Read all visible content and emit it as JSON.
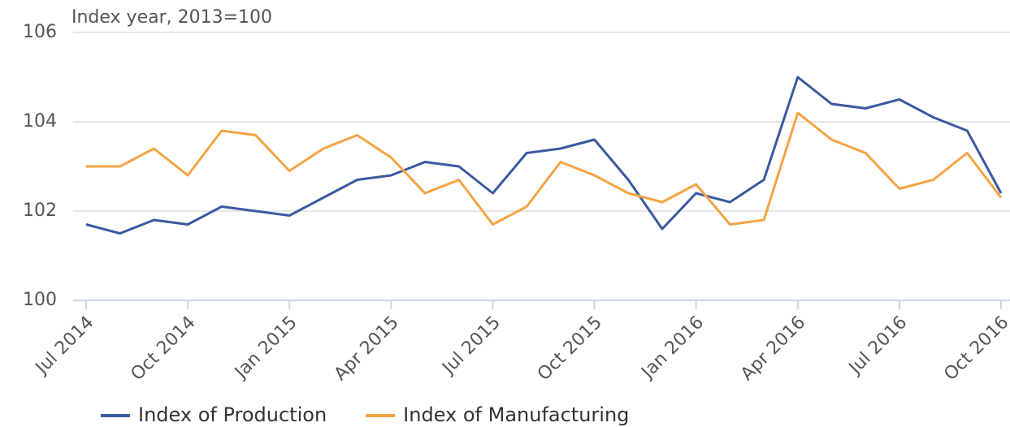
{
  "chart_data": {
    "type": "line",
    "subtitle": "Index year, 2013=100",
    "categories": [
      "Jul 2014",
      null,
      null,
      "Oct 2014",
      null,
      null,
      "Jan 2015",
      null,
      null,
      "Apr 2015",
      null,
      null,
      "Jul 2015",
      null,
      null,
      "Oct 2015",
      null,
      null,
      "Jan 2016",
      null,
      null,
      "Apr 2016",
      null,
      null,
      "Jul 2016",
      null,
      null,
      "Oct 2016"
    ],
    "series": [
      {
        "name": "Index of Production",
        "color": "#3a5aa0",
        "values": [
          101.7,
          101.5,
          101.8,
          101.7,
          102.1,
          102.0,
          101.9,
          102.3,
          102.7,
          102.8,
          103.1,
          103.0,
          102.4,
          103.3,
          103.4,
          103.6,
          102.7,
          101.6,
          102.4,
          102.2,
          102.7,
          105.0,
          104.4,
          104.3,
          104.5,
          104.1,
          103.8,
          102.4
        ]
      },
      {
        "name": "Index of Manufacturing",
        "color": "#f5a443",
        "values": [
          103.0,
          103.0,
          103.4,
          102.8,
          103.8,
          103.7,
          102.9,
          103.4,
          103.7,
          103.2,
          102.4,
          102.7,
          101.7,
          102.1,
          103.1,
          102.8,
          102.4,
          102.2,
          102.6,
          101.7,
          101.8,
          104.2,
          103.6,
          103.3,
          102.5,
          102.7,
          103.3,
          102.3
        ]
      }
    ],
    "ylim": [
      100,
      106
    ],
    "yticks": [
      100,
      102,
      104,
      106
    ],
    "grid": true,
    "legend": "bottom-left"
  }
}
